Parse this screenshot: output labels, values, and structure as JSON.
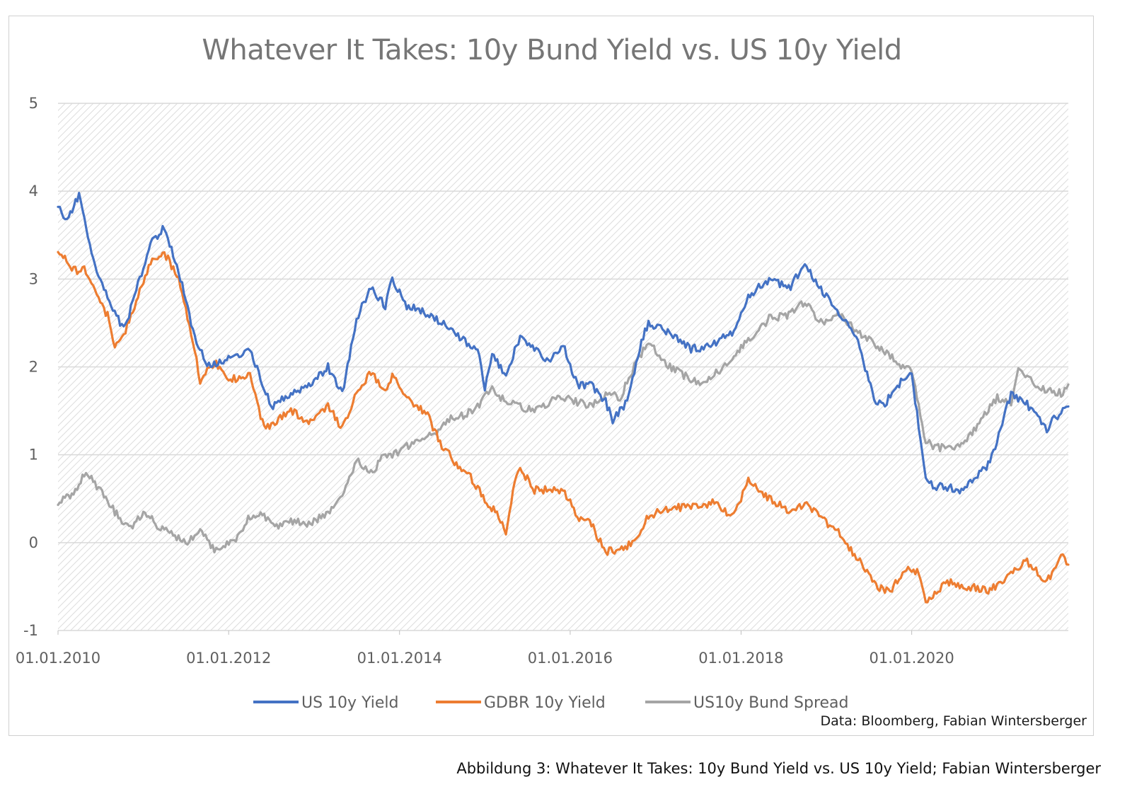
{
  "figure": {
    "caption": "Abbildung 3: Whatever It Takes: 10y Bund Yield vs. US 10y Yield; Fabian Wintersberger"
  },
  "chart_data": {
    "type": "line",
    "title": "Whatever It Takes: 10y Bund Yield vs. US 10y Yield",
    "source_note": "Data: Bloomberg, Fabian Wintersberger",
    "xlabel": "",
    "ylabel": "",
    "ylim": [
      -1,
      5
    ],
    "y_ticks": [
      "5",
      "4",
      "3",
      "2",
      "1",
      "0",
      "-1"
    ],
    "x_tick_labels": [
      "01.01.2010",
      "01.01.2012",
      "01.01.2014",
      "01.01.2016",
      "01.01.2018",
      "01.01.2020"
    ],
    "x_range": [
      "01.01.2010",
      "01.11.2021"
    ],
    "grid": "horizontal",
    "legend_position": "bottom",
    "series": [
      {
        "name": "US 10y Yield",
        "color": "#4472C4",
        "x": [
          "01.01.2010",
          "01.02.2010",
          "01.04.2010",
          "01.06.2010",
          "01.08.2010",
          "01.10.2010",
          "01.11.2010",
          "01.02.2011",
          "01.04.2011",
          "01.06.2011",
          "01.08.2011",
          "01.10.2011",
          "01.12.2011",
          "01.04.2012",
          "01.07.2012",
          "01.10.2012",
          "01.12.2012",
          "01.03.2013",
          "01.05.2013",
          "01.07.2013",
          "01.09.2013",
          "01.11.2013",
          "01.12.2013",
          "01.02.2014",
          "01.05.2014",
          "01.07.2014",
          "01.10.2014",
          "01.12.2014",
          "01.01.2015",
          "01.02.2015",
          "01.04.2015",
          "01.06.2015",
          "01.08.2015",
          "01.10.2015",
          "01.12.2015",
          "01.02.2016",
          "01.04.2016",
          "01.06.2016",
          "01.07.2016",
          "01.09.2016",
          "01.11.2016",
          "01.12.2016",
          "01.03.2017",
          "01.06.2017",
          "01.09.2017",
          "01.12.2017",
          "01.02.2018",
          "01.05.2018",
          "01.08.2018",
          "01.10.2018",
          "01.12.2018",
          "01.02.2019",
          "01.05.2019",
          "01.08.2019",
          "01.09.2019",
          "01.11.2019",
          "01.01.2020",
          "01.03.2020",
          "01.04.2020",
          "01.08.2020",
          "01.12.2020",
          "01.03.2021",
          "01.05.2021",
          "01.08.2021",
          "01.10.2021",
          "01.11.2021"
        ],
        "values": [
          3.85,
          3.65,
          3.95,
          3.2,
          2.8,
          2.45,
          2.6,
          3.4,
          3.6,
          3.1,
          2.4,
          2.0,
          2.05,
          2.2,
          1.55,
          1.7,
          1.75,
          2.0,
          1.7,
          2.55,
          2.9,
          2.7,
          3.0,
          2.7,
          2.6,
          2.5,
          2.3,
          2.2,
          1.75,
          2.15,
          1.9,
          2.35,
          2.2,
          2.05,
          2.25,
          1.8,
          1.8,
          1.6,
          1.4,
          1.6,
          2.3,
          2.5,
          2.4,
          2.2,
          2.25,
          2.4,
          2.8,
          3.0,
          2.9,
          3.2,
          2.9,
          2.7,
          2.4,
          1.6,
          1.55,
          1.8,
          1.9,
          0.75,
          0.65,
          0.6,
          0.9,
          1.7,
          1.6,
          1.3,
          1.5,
          1.55
        ]
      },
      {
        "name": "GDBR 10y Yield",
        "color": "#ED7D31",
        "x": [
          "01.01.2010",
          "01.03.2010",
          "01.05.2010",
          "01.07.2010",
          "01.08.2010",
          "01.09.2010",
          "01.11.2010",
          "01.02.2011",
          "01.04.2011",
          "01.06.2011",
          "01.08.2011",
          "01.09.2011",
          "01.11.2011",
          "01.01.2012",
          "01.04.2012",
          "01.06.2012",
          "01.08.2012",
          "01.10.2012",
          "01.12.2012",
          "01.03.2013",
          "01.05.2013",
          "01.07.2013",
          "01.09.2013",
          "01.11.2013",
          "01.12.2013",
          "01.02.2014",
          "01.05.2014",
          "01.07.2014",
          "01.09.2014",
          "01.11.2014",
          "01.01.2015",
          "01.03.2015",
          "01.04.2015",
          "01.05.2015",
          "01.06.2015",
          "01.08.2015",
          "01.10.2015",
          "01.12.2015",
          "01.02.2016",
          "01.04.2016",
          "01.06.2016",
          "01.07.2016",
          "01.10.2016",
          "01.12.2016",
          "01.03.2017",
          "01.06.2017",
          "01.09.2017",
          "01.12.2017",
          "01.02.2018",
          "01.05.2018",
          "01.08.2018",
          "01.10.2018",
          "01.12.2018",
          "01.03.2019",
          "01.06.2019",
          "01.08.2019",
          "01.10.2019",
          "01.12.2019",
          "01.02.2020",
          "01.03.2020",
          "01.06.2020",
          "01.09.2020",
          "01.12.2020",
          "01.03.2021",
          "01.05.2021",
          "01.08.2021",
          "01.10.2021",
          "01.11.2021"
        ],
        "values": [
          3.35,
          3.1,
          3.1,
          2.7,
          2.6,
          2.2,
          2.5,
          3.2,
          3.3,
          3.0,
          2.3,
          1.85,
          2.05,
          1.85,
          1.9,
          1.3,
          1.4,
          1.5,
          1.35,
          1.55,
          1.3,
          1.7,
          1.95,
          1.7,
          1.9,
          1.65,
          1.45,
          1.1,
          0.9,
          0.75,
          0.5,
          0.3,
          0.1,
          0.6,
          0.85,
          0.6,
          0.6,
          0.6,
          0.3,
          0.2,
          -0.1,
          -0.1,
          0.0,
          0.3,
          0.4,
          0.4,
          0.45,
          0.3,
          0.7,
          0.5,
          0.35,
          0.45,
          0.3,
          0.1,
          -0.25,
          -0.5,
          -0.55,
          -0.3,
          -0.35,
          -0.7,
          -0.45,
          -0.5,
          -0.55,
          -0.35,
          -0.2,
          -0.45,
          -0.15,
          -0.25
        ]
      },
      {
        "name": "US10y Bund Spread",
        "color": "#A5A5A5",
        "x": [
          "01.01.2010",
          "01.03.2010",
          "01.05.2010",
          "01.07.2010",
          "01.09.2010",
          "01.11.2010",
          "01.01.2011",
          "01.03.2011",
          "01.05.2011",
          "01.07.2011",
          "01.09.2011",
          "01.11.2011",
          "01.02.2012",
          "01.04.2012",
          "01.06.2012",
          "01.08.2012",
          "01.10.2012",
          "01.12.2012",
          "01.03.2013",
          "01.05.2013",
          "01.07.2013",
          "01.09.2013",
          "01.11.2013",
          "01.12.2013",
          "01.02.2014",
          "01.04.2014",
          "01.06.2014",
          "01.08.2014",
          "01.10.2014",
          "01.12.2014",
          "01.02.2015",
          "01.04.2015",
          "01.06.2015",
          "01.08.2015",
          "01.10.2015",
          "01.12.2015",
          "01.02.2016",
          "01.04.2016",
          "01.06.2016",
          "01.08.2016",
          "01.10.2016",
          "01.12.2016",
          "01.02.2017",
          "01.05.2017",
          "01.08.2017",
          "01.11.2017",
          "01.02.2018",
          "01.05.2018",
          "01.08.2018",
          "01.10.2018",
          "01.12.2018",
          "01.03.2019",
          "01.06.2019",
          "01.09.2019",
          "01.11.2019",
          "01.01.2020",
          "01.03.2020",
          "01.04.2020",
          "01.07.2020",
          "01.10.2020",
          "01.01.2021",
          "01.03.2021",
          "01.04.2021",
          "01.07.2021",
          "01.10.2021",
          "01.11.2021"
        ],
        "values": [
          0.45,
          0.55,
          0.8,
          0.6,
          0.35,
          0.15,
          0.35,
          0.2,
          0.1,
          0.0,
          0.15,
          -0.1,
          0.05,
          0.3,
          0.3,
          0.2,
          0.25,
          0.2,
          0.35,
          0.5,
          0.95,
          0.8,
          1.0,
          1.0,
          1.1,
          1.15,
          1.25,
          1.4,
          1.45,
          1.55,
          1.75,
          1.6,
          1.55,
          1.5,
          1.6,
          1.65,
          1.6,
          1.55,
          1.7,
          1.65,
          2.0,
          2.3,
          2.05,
          1.9,
          1.8,
          2.05,
          2.3,
          2.55,
          2.6,
          2.75,
          2.5,
          2.6,
          2.35,
          2.2,
          2.05,
          1.95,
          1.15,
          1.1,
          1.05,
          1.3,
          1.65,
          1.6,
          2.0,
          1.75,
          1.7,
          1.8
        ]
      }
    ]
  }
}
